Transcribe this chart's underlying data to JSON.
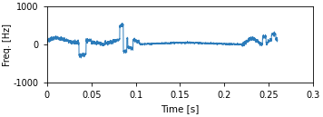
{
  "title": "",
  "xlabel": "Time [s]",
  "ylabel": "Freq. [Hz]",
  "xlim": [
    0,
    0.3
  ],
  "ylim": [
    -1000,
    1000
  ],
  "xticks": [
    0,
    0.05,
    0.1,
    0.15,
    0.2,
    0.25,
    0.3
  ],
  "yticks": [
    -1000,
    0,
    1000
  ],
  "line_color": "#2b7bba",
  "line_width": 0.7,
  "bg_color": "#ffffff",
  "figsize": [
    3.56,
    1.29
  ],
  "dpi": 100
}
